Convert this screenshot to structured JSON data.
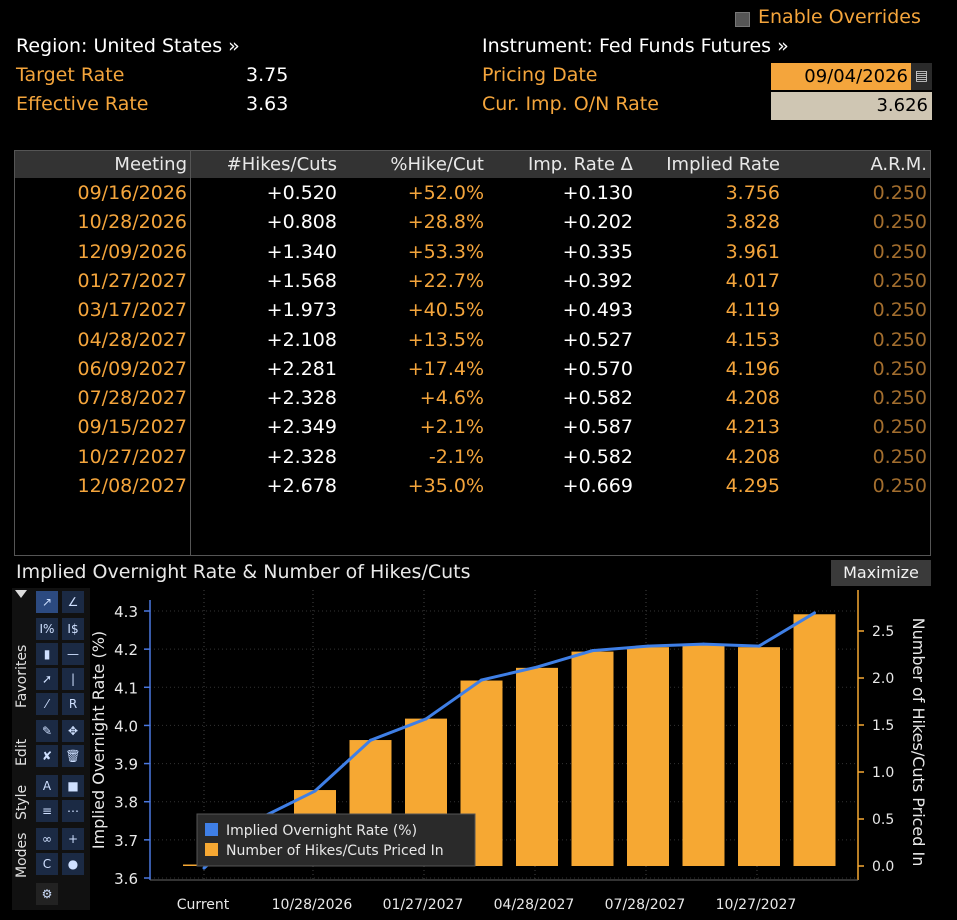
{
  "header": {
    "enable_overrides": "Enable Overrides",
    "region": "Region: United States »",
    "instrument": "Instrument: Fed Funds Futures »",
    "target_rate_label": "Target Rate",
    "target_rate_value": "3.75",
    "effective_rate_label": "Effective Rate",
    "effective_rate_value": "3.63",
    "pricing_date_label": "Pricing Date",
    "pricing_date_value": "09/04/2026",
    "cur_imp_label": "Cur. Imp. O/N Rate",
    "cur_imp_value": "3.626"
  },
  "table": {
    "columns": [
      "Meeting",
      "#Hikes/Cuts",
      "%Hike/Cut",
      "Imp. Rate Δ",
      "Implied Rate",
      "A.R.M."
    ],
    "rows": [
      [
        "09/16/2026",
        "+0.520",
        "+52.0%",
        "+0.130",
        "3.756",
        "0.250"
      ],
      [
        "10/28/2026",
        "+0.808",
        "+28.8%",
        "+0.202",
        "3.828",
        "0.250"
      ],
      [
        "12/09/2026",
        "+1.340",
        "+53.3%",
        "+0.335",
        "3.961",
        "0.250"
      ],
      [
        "01/27/2027",
        "+1.568",
        "+22.7%",
        "+0.392",
        "4.017",
        "0.250"
      ],
      [
        "03/17/2027",
        "+1.973",
        "+40.5%",
        "+0.493",
        "4.119",
        "0.250"
      ],
      [
        "04/28/2027",
        "+2.108",
        "+13.5%",
        "+0.527",
        "4.153",
        "0.250"
      ],
      [
        "06/09/2027",
        "+2.281",
        "+17.4%",
        "+0.570",
        "4.196",
        "0.250"
      ],
      [
        "07/28/2027",
        "+2.328",
        "+4.6%",
        "+0.582",
        "4.208",
        "0.250"
      ],
      [
        "09/15/2027",
        "+2.349",
        "+2.1%",
        "+0.587",
        "4.213",
        "0.250"
      ],
      [
        "10/27/2027",
        "+2.328",
        "-2.1%",
        "+0.582",
        "4.208",
        "0.250"
      ],
      [
        "12/08/2027",
        "+2.678",
        "+35.0%",
        "+0.669",
        "4.295",
        "0.250"
      ]
    ]
  },
  "chart_section": {
    "title": "Implied Overnight Rate & Number of Hikes/Cuts",
    "maximize": "Maximize",
    "toolbar_tabs": [
      "Favorites",
      "Edit",
      "Style",
      "Modes"
    ]
  },
  "colors": {
    "orange": "#f4a53c",
    "bar": "#f6a833",
    "line": "#3f7fe6",
    "axis": "#4a78e0"
  },
  "chart_data": {
    "type": "bar",
    "title": "",
    "categories": [
      "Current",
      "09/16/2026",
      "10/28/2026",
      "12/09/2026",
      "01/27/2027",
      "03/17/2027",
      "04/28/2027",
      "06/09/2027",
      "07/28/2027",
      "09/15/2027",
      "10/27/2027",
      "12/08/2027"
    ],
    "x_tick_labels": [
      "Current",
      "10/28/2026",
      "01/27/2027",
      "04/28/2027",
      "07/28/2027",
      "10/27/2027"
    ],
    "ylabel": "Implied Overnight Rate (%)",
    "y2label": "Number of Hikes/Cuts Priced In",
    "ylim": [
      3.6,
      4.3
    ],
    "y_ticks": [
      "3.6",
      "3.7",
      "3.8",
      "3.9",
      "4.0",
      "4.1",
      "4.2",
      "4.3"
    ],
    "y2lim": [
      0.0,
      2.5
    ],
    "y2_ticks": [
      "0.0",
      "0.5",
      "1.0",
      "1.5",
      "2.0",
      "2.5"
    ],
    "legend_position": "bottom-left",
    "series": [
      {
        "name": "Implied Overnight Rate (%)",
        "type": "line",
        "axis": "left",
        "values": [
          3.626,
          3.756,
          3.828,
          3.961,
          4.017,
          4.119,
          4.153,
          4.196,
          4.208,
          4.213,
          4.208,
          4.295
        ]
      },
      {
        "name": "Number of Hikes/Cuts Priced In",
        "type": "bar",
        "axis": "right",
        "values": [
          0.0,
          0.52,
          0.808,
          1.34,
          1.568,
          1.973,
          2.108,
          2.281,
          2.328,
          2.349,
          2.328,
          2.678
        ]
      }
    ]
  }
}
